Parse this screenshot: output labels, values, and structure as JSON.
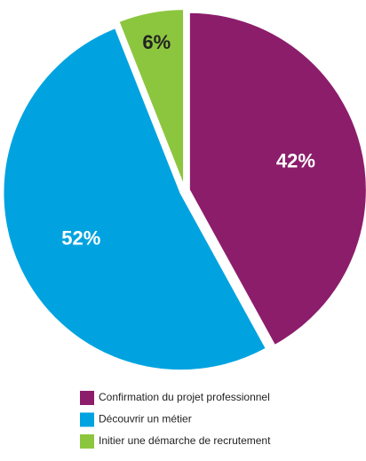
{
  "chart_data": {
    "type": "pie",
    "categories": [
      "Confirmation du projet professionnel",
      "Découvrir un métier",
      "Initier une démarche de recrutement"
    ],
    "values": [
      42,
      52,
      6
    ],
    "value_labels": [
      "42%",
      "52%",
      "6%"
    ],
    "colors": [
      "#8c1d6b",
      "#00a3e0",
      "#8cc63f"
    ],
    "start_angle": 0,
    "direction": "clockwise",
    "legend": "bottom"
  }
}
